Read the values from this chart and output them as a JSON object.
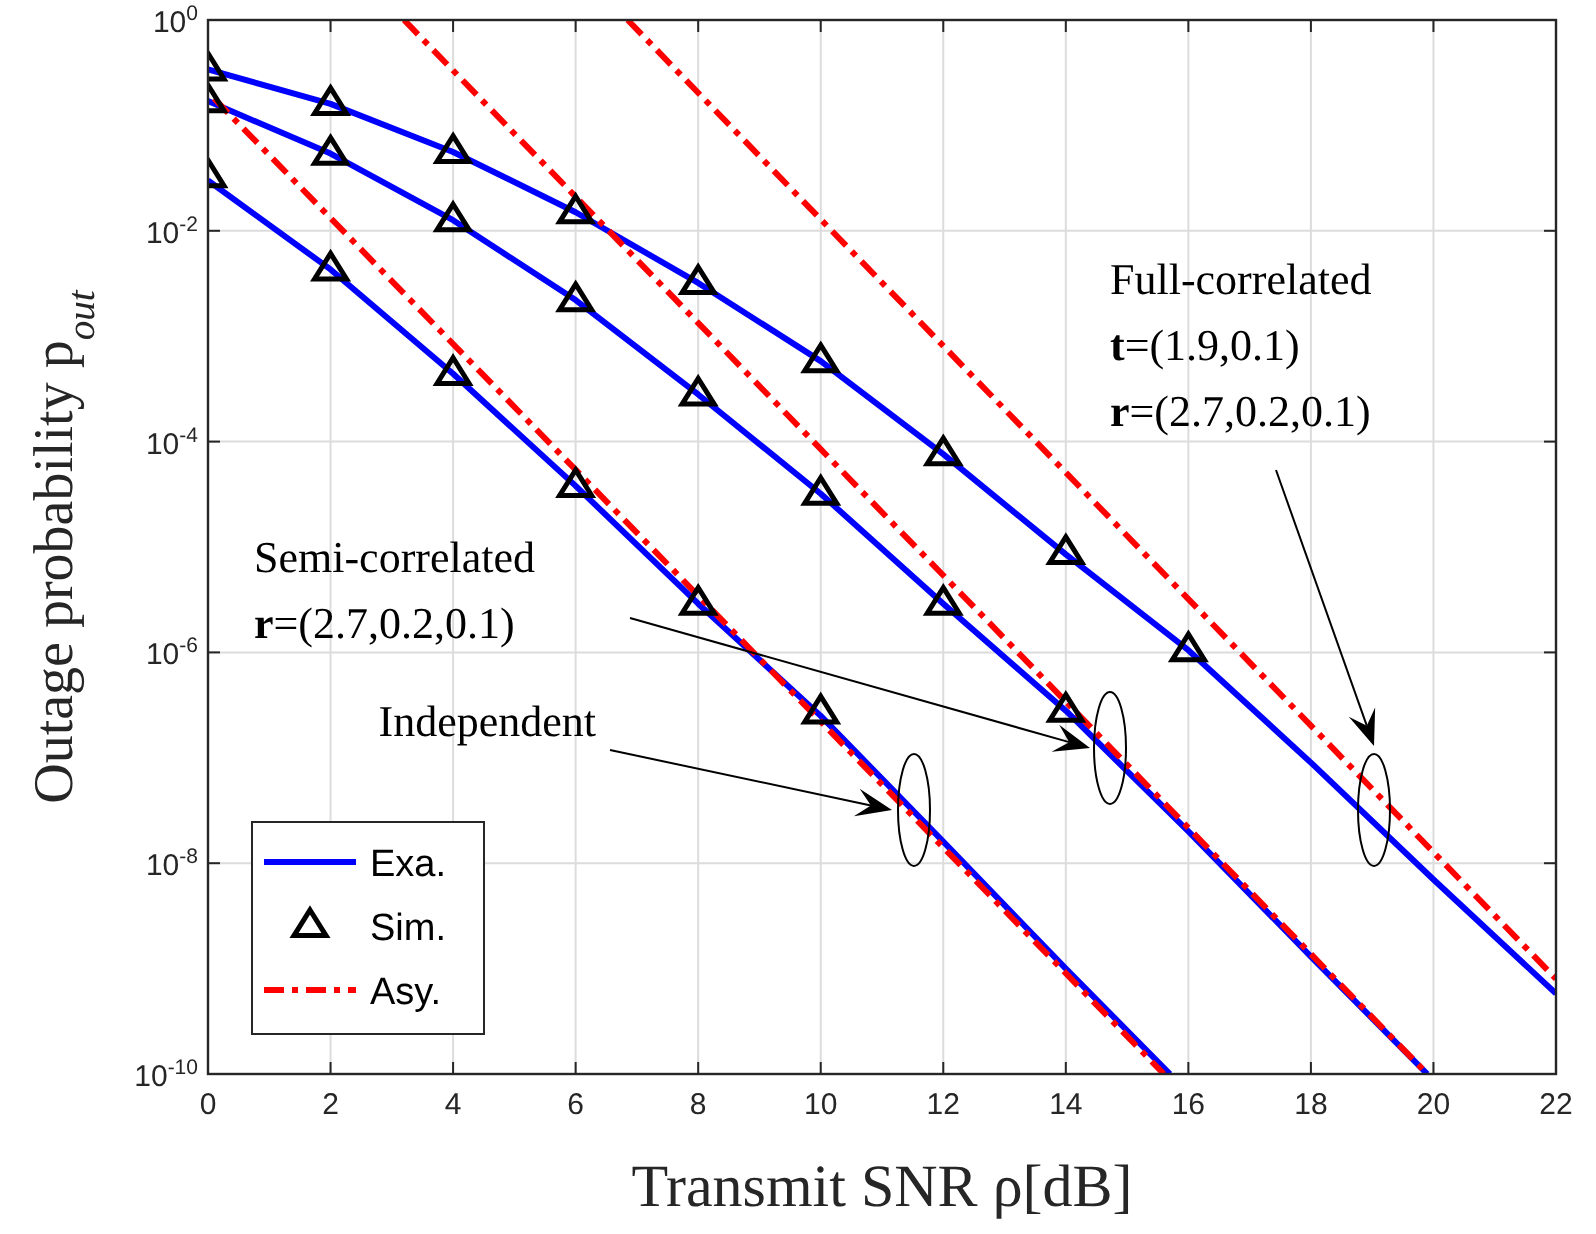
{
  "chart_data": {
    "type": "line",
    "xlabel": "Transmit SNR ρ[dB]",
    "ylabel": "Outage probability p$_{out}$",
    "xlim": [
      0,
      22
    ],
    "xticks": [
      0,
      2,
      4,
      6,
      8,
      10,
      12,
      14,
      16,
      18,
      20,
      22
    ],
    "ylim": [
      1e-10,
      1
    ],
    "log": true,
    "yticks": [
      {
        "value": 1e-10,
        "label": "10$^{-10}$"
      },
      {
        "value": 1e-08,
        "label": "10$^{-8}$"
      },
      {
        "value": 1e-06,
        "label": "10$^{-6}$"
      },
      {
        "value": 0.0001,
        "label": "10$^{-4}$"
      },
      {
        "value": 0.01,
        "label": "10$^{-2}$"
      },
      {
        "value": 1,
        "label": "10$^{0}$"
      }
    ],
    "grid": true,
    "legend": "bottom left",
    "series": [
      {
        "name": "Exa.",
        "color": "#0000ff",
        "line_style": "solid",
        "x": [
          0,
          2,
          4,
          6,
          8,
          10,
          12,
          14,
          15.7
        ],
        "values": [
          0.03,
          0.0043,
          0.00044,
          3.8e-05,
          2.9e-06,
          2.5e-07,
          1.6e-08,
          1e-09,
          1e-10
        ]
      },
      {
        "color": "#0000ff",
        "line_style": "solid",
        "x": [
          0,
          2,
          4,
          6,
          8,
          10,
          12,
          14,
          16,
          18,
          19.9
        ],
        "values": [
          0.17,
          0.054,
          0.0126,
          0.0022,
          0.00028,
          3.2e-05,
          2.9e-06,
          2.8e-07,
          2e-08,
          1.3e-09,
          1e-10
        ]
      },
      {
        "color": "#0000ff",
        "line_style": "solid",
        "x": [
          0,
          2,
          4,
          6,
          8,
          10,
          12,
          14,
          16,
          18,
          20,
          22
        ],
        "values": [
          0.34,
          0.16,
          0.056,
          0.015,
          0.0032,
          0.00058,
          7.6e-05,
          8.5e-06,
          1.05e-06,
          9e-08,
          7e-09,
          5.8e-10
        ]
      },
      {
        "name": "Sim.",
        "type": "scatter",
        "color": "#000000",
        "marker": "triangle",
        "x": [
          0,
          2,
          4,
          6,
          8,
          10
        ],
        "values": [
          0.033,
          0.0043,
          0.00044,
          3.8e-05,
          2.9e-06,
          2.7e-07
        ]
      },
      {
        "type": "scatter",
        "color": "#000000",
        "marker": "triangle",
        "x": [
          0,
          2,
          4,
          6,
          8,
          10,
          12,
          14
        ],
        "values": [
          0.17,
          0.054,
          0.0126,
          0.0022,
          0.00028,
          3.2e-05,
          2.9e-06,
          2.8e-07
        ]
      },
      {
        "type": "scatter",
        "color": "#000000",
        "marker": "triangle",
        "x": [
          0,
          2,
          4,
          6,
          8,
          10,
          12,
          14,
          16
        ],
        "values": [
          0.34,
          0.16,
          0.056,
          0.015,
          0.0032,
          0.00058,
          7.6e-05,
          8.8e-06,
          1.05e-06
        ]
      },
      {
        "name": "Asy.",
        "color": "#ff0000",
        "line_style": "dashed",
        "x": [
          0.1,
          15.6
        ],
        "values": [
          0.18,
          1e-10
        ]
      },
      {
        "color": "#ff0000",
        "line_style": "dashed",
        "x": [
          3.2,
          19.9
        ],
        "values": [
          1,
          1e-10
        ]
      },
      {
        "color": "#ff0000",
        "line_style": "dashed",
        "x": [
          6.85,
          22
        ],
        "values": [
          1,
          8e-10
        ]
      }
    ],
    "annotations": [
      "Independent",
      "Semi-correlated\nr=(2.7,0.2,0.1)",
      "Full-correlated\nt=(1.9,0.1)\nr=(2.7,0.2,0.1)"
    ]
  }
}
